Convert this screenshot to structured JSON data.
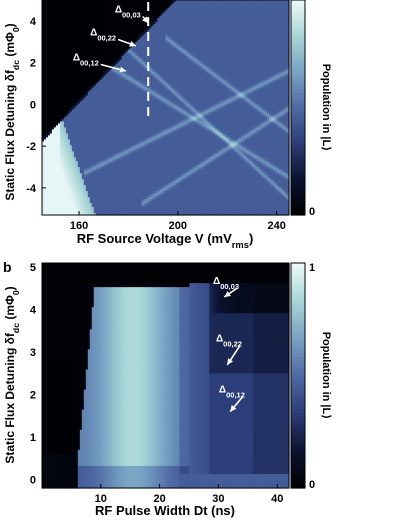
{
  "colormap": {
    "stops": [
      "#000000",
      "#0b1330",
      "#2c3d78",
      "#4f6aa5",
      "#79a3c4",
      "#a8d6d6",
      "#eefafa"
    ],
    "range": [
      0,
      1
    ]
  },
  "chart_data": [
    {
      "type": "heatmap",
      "panel_label": "",
      "title": "",
      "xlabel_parts": [
        [
          "RF Source Voltage V (mV",
          false
        ],
        [
          "rms",
          true
        ],
        [
          ")",
          false
        ]
      ],
      "ylabel_parts": [
        [
          "Static Flux Detuning δf",
          false
        ],
        [
          "dc",
          true
        ],
        [
          " (mΦ",
          false
        ],
        [
          "0",
          true
        ],
        [
          ")",
          false
        ]
      ],
      "xlim": [
        145,
        245
      ],
      "ylim": [
        -5.3,
        5.0
      ],
      "x_ticks": [
        160,
        200,
        240
      ],
      "x_tick_labels": [
        "160",
        "200",
        "240"
      ],
      "y_ticks": [
        -4,
        -2,
        0,
        2,
        4
      ],
      "y_tick_labels": [
        "-4",
        "-2",
        "0",
        "2",
        "4"
      ],
      "colorbar": {
        "label": "Population in |L⟩",
        "tick_labels": [
          "",
          "0"
        ],
        "ticks": [
          1,
          0
        ]
      },
      "annotations": [
        {
          "label": "Δ",
          "subscript": "00,03",
          "x": 185,
          "y": 4.4,
          "arrow_to": [
            188,
            3.9
          ]
        },
        {
          "label": "Δ",
          "subscript": "00,22",
          "x": 175,
          "y": 3.3,
          "arrow_to": [
            183,
            2.8
          ]
        },
        {
          "label": "Δ",
          "subscript": "00,12",
          "x": 168,
          "y": 2.1,
          "arrow_to": [
            179,
            1.6
          ]
        }
      ],
      "marker_line": {
        "x": 188,
        "style": "dashed"
      },
      "features": {
        "bright_diamond_vertex_x": 152,
        "bright_diamond_vertex_y": -0.35,
        "upper_dark_boundary_slope": 0.125,
        "upper_boundary_start": [
          157,
          -0.3
        ],
        "resonance_lines": [
          {
            "from": [
              162,
              -3.3
            ],
            "to": [
              245,
              1.6
            ]
          },
          {
            "from": [
              185,
              -4.8
            ],
            "to": [
              245,
              -0.2
            ]
          },
          {
            "from": [
              170,
              2.0
            ],
            "to": [
              245,
              -3.5
            ]
          },
          {
            "from": [
              195,
              3.2
            ],
            "to": [
              245,
              -1.3
            ]
          },
          {
            "from": [
              160,
              4.8
            ],
            "to": [
              245,
              -4.5
            ]
          }
        ]
      }
    },
    {
      "type": "heatmap",
      "panel_label": "b",
      "title": "",
      "xlabel": "RF Pulse Width Dt (ns)",
      "ylabel_parts": [
        [
          "Static Flux Detuning δf",
          false
        ],
        [
          "dc",
          true
        ],
        [
          " (mΦ",
          false
        ],
        [
          "0",
          true
        ],
        [
          ")",
          false
        ]
      ],
      "xlim": [
        0,
        42
      ],
      "ylim": [
        -0.2,
        5.1
      ],
      "x_ticks": [
        10,
        20,
        30,
        40
      ],
      "x_tick_labels": [
        "10",
        "20",
        "30",
        "40"
      ],
      "y_ticks": [
        0,
        1,
        2,
        3,
        4,
        5
      ],
      "y_tick_labels": [
        "0",
        "1",
        "2",
        "3",
        "4",
        "5"
      ],
      "colorbar": {
        "label": "Population in |L⟩",
        "tick_labels": [
          "1",
          "0"
        ],
        "ticks": [
          1,
          0
        ]
      },
      "annotations": [
        {
          "label": "Δ",
          "subscript": "00,03",
          "x": 33.5,
          "y": 4.6,
          "arrow_to": [
            31,
            4.3
          ]
        },
        {
          "label": "Δ",
          "subscript": "00,22",
          "x": 34,
          "y": 3.25,
          "arrow_to": [
            31.5,
            2.7
          ]
        },
        {
          "label": "Δ",
          "subscript": "00,12",
          "x": 34.5,
          "y": 2.05,
          "arrow_to": [
            32,
            1.6
          ]
        }
      ],
      "features": {
        "pulse_start_ns": 6,
        "pulse_end_ns": 25,
        "plateau_top": 4.55,
        "flat_bright_level": 0.82,
        "post_pulse_level": 0.35
      }
    }
  ]
}
